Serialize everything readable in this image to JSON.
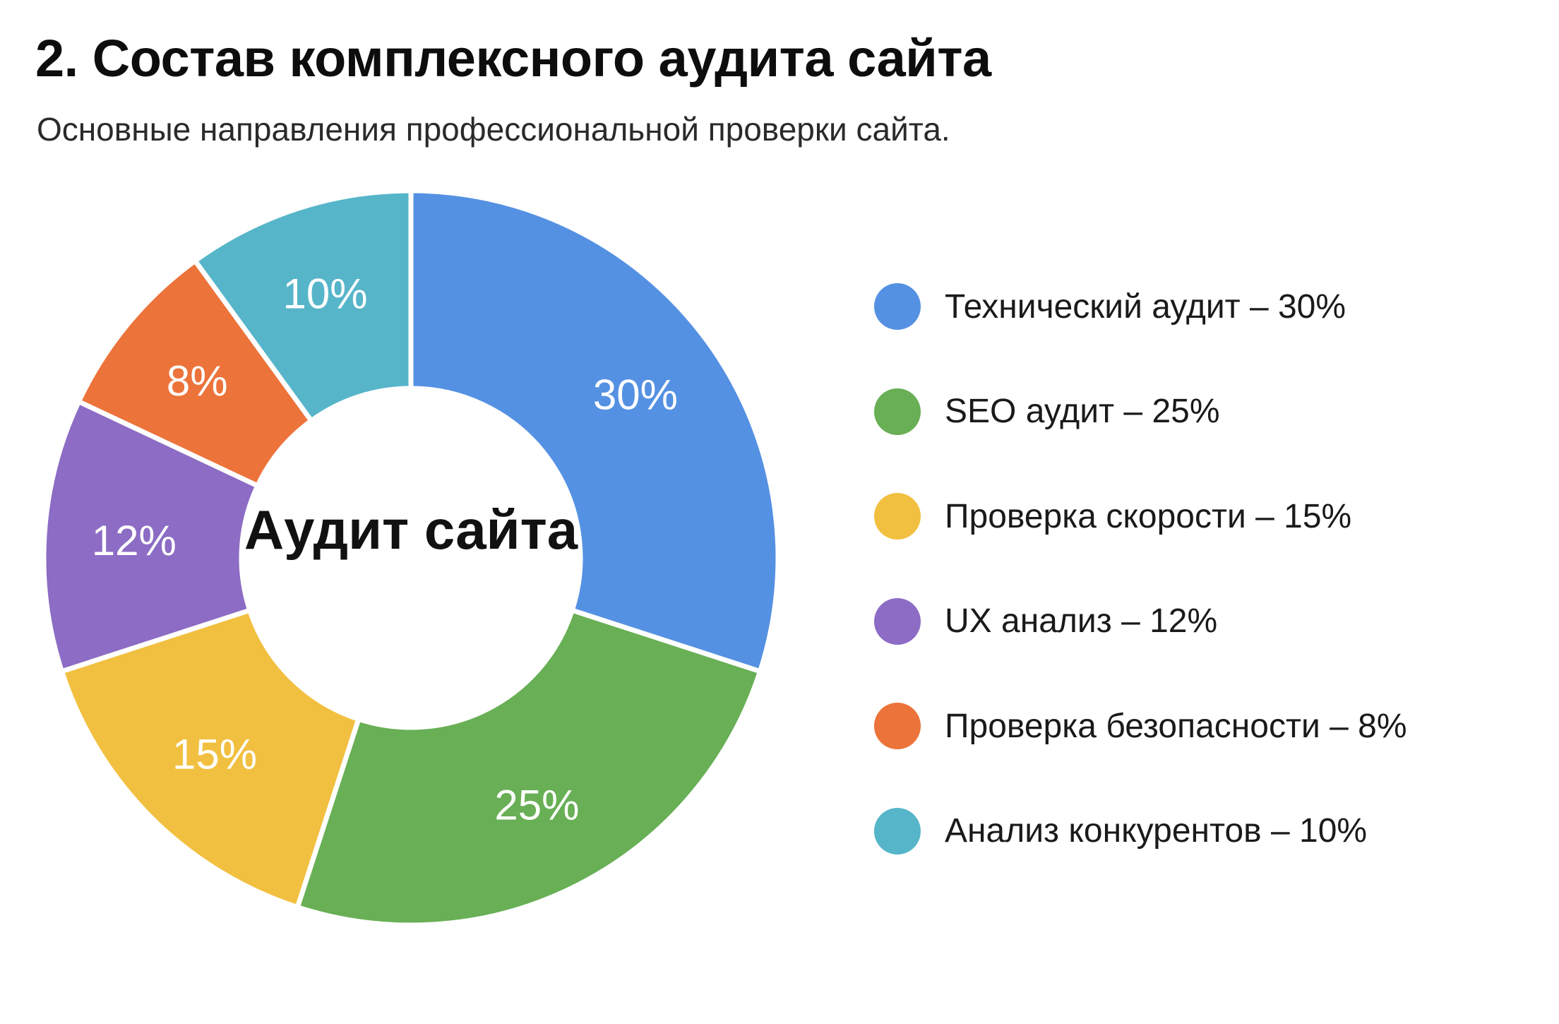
{
  "title": "2. Состав комплексного аудита сайта",
  "subtitle": "Основные направления профессиональной проверки сайта.",
  "chart_data": {
    "type": "pie",
    "donut": true,
    "center_label": "Аудит сайта",
    "legend_position": "right",
    "slices": [
      {
        "name": "Технический аудит",
        "value": 30,
        "label": "30%",
        "legend": "Технический аудит – 30%",
        "color": "#5591E3"
      },
      {
        "name": "SEO аудит",
        "value": 25,
        "label": "25%",
        "legend": "SEO аудит – 25%",
        "color": "#68AF55"
      },
      {
        "name": "Проверка скорости",
        "value": 15,
        "label": "15%",
        "legend": "Проверка скорости – 15%",
        "color": "#F2C040"
      },
      {
        "name": "UX анализ",
        "value": 12,
        "label": "12%",
        "legend": "UX анализ – 12%",
        "color": "#8C6CC4"
      },
      {
        "name": "Проверка безопасности",
        "value": 8,
        "label": "8%",
        "legend": "Проверка безопасности – 8%",
        "color": "#EC733A"
      },
      {
        "name": "Анализ конкурентов",
        "value": 10,
        "label": "10%",
        "legend": "Анализ конкурентов – 10%",
        "color": "#56B5C9"
      }
    ]
  }
}
